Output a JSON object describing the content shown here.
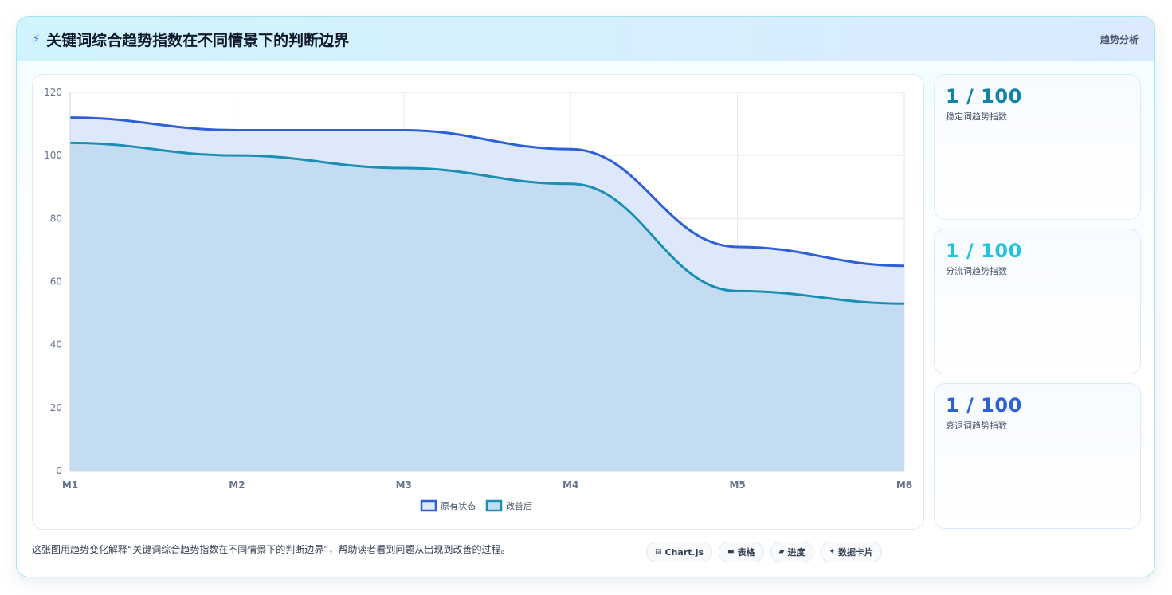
{
  "header": {
    "title": "关键词综合趋势指数在不同情景下的判断边界",
    "tag": "趋势分析",
    "icon": "lightning-icon"
  },
  "chart_data": {
    "type": "area",
    "categories": [
      "M1",
      "M2",
      "M3",
      "M4",
      "M5",
      "M6"
    ],
    "series": [
      {
        "name": "原有状态",
        "values": [
          112,
          108,
          108,
          102,
          71,
          65
        ],
        "color": "#2d5fd6",
        "fill": "#dde8fb"
      },
      {
        "name": "改善后",
        "values": [
          104,
          100,
          96,
          91,
          57,
          53
        ],
        "color": "#1a8fb3",
        "fill": "#c4dcf2"
      }
    ],
    "ylim": [
      0,
      120
    ],
    "yticks": [
      "0",
      "20",
      "40",
      "60",
      "80",
      "100",
      "120"
    ],
    "grid": true,
    "legend_position": "bottom"
  },
  "stats": [
    {
      "value": "1 / 100",
      "label": "稳定词趋势指数",
      "color": "#1482a8"
    },
    {
      "value": "1 / 100",
      "label": "分流词趋势指数",
      "color": "#22c3dd"
    },
    {
      "value": "1 / 100",
      "label": "衰退词趋势指数",
      "color": "#2d5fd6"
    }
  ],
  "footer": {
    "text": "这张图用趋势变化解释“关键词综合趋势指数在不同情景下的判断边界”，帮助读者看到问题从出现到改善的过程。",
    "chips": [
      {
        "icon": "chart-icon",
        "glyph": "▤",
        "label": "Chart.js"
      },
      {
        "icon": "table-icon",
        "glyph": "▬",
        "label": "表格"
      },
      {
        "icon": "progress-icon",
        "glyph": "▰",
        "label": "进度"
      },
      {
        "icon": "sparkle-icon",
        "glyph": "✦",
        "label": "数据卡片"
      }
    ]
  }
}
